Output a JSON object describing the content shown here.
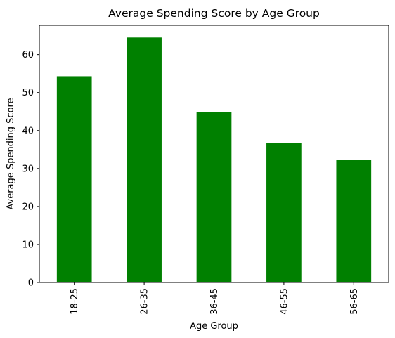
{
  "chart_data": {
    "type": "bar",
    "title": "Average Spending Score by Age Group",
    "xlabel": "Age Group",
    "ylabel": "Average Spending Score",
    "categories": [
      "18-25",
      "26-35",
      "36-45",
      "46-55",
      "56-65"
    ],
    "values": [
      54.3,
      64.5,
      44.8,
      36.8,
      32.2
    ],
    "ylim": [
      0,
      67.7
    ],
    "yticks": [
      0,
      10,
      20,
      30,
      40,
      50,
      60
    ],
    "bar_color": "#008000",
    "grid": false,
    "legend": "none"
  }
}
